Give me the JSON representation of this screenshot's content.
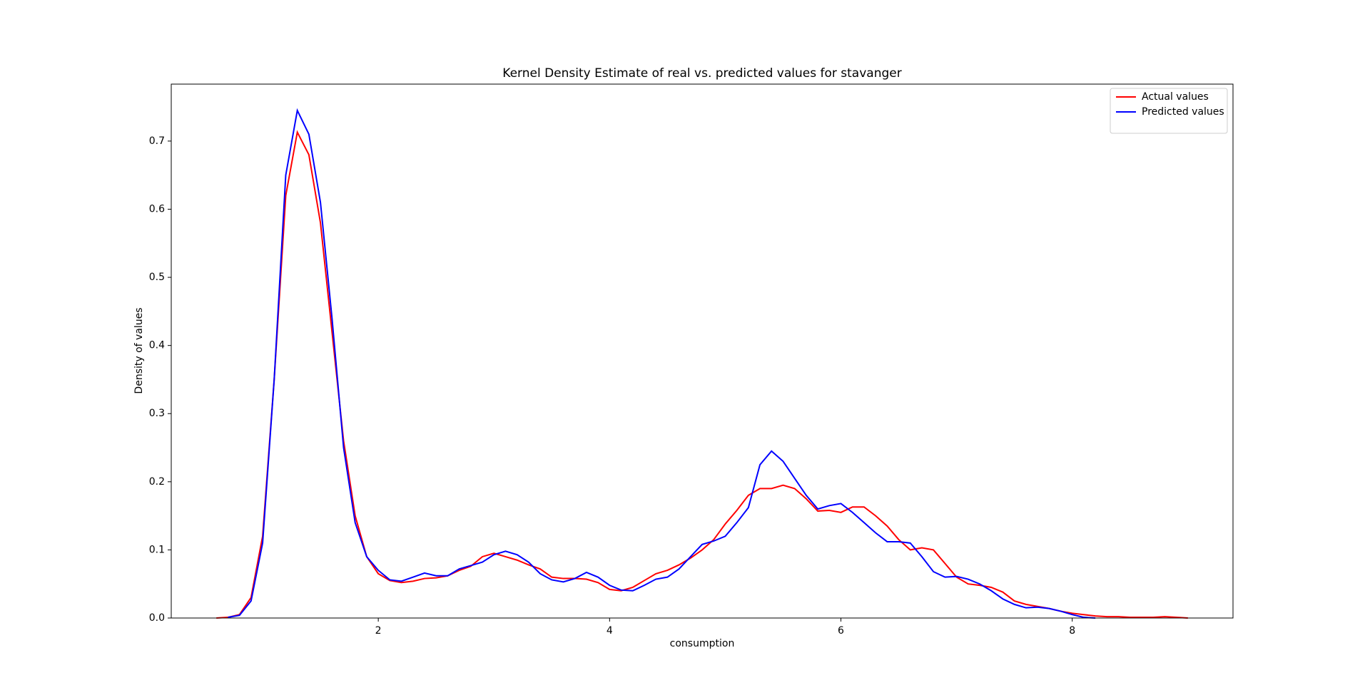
{
  "chart_data": {
    "type": "line",
    "title": "Kernel Density Estimate of real vs. predicted values for stavanger",
    "x_label": "consumption",
    "y_label": "Density of values",
    "x": [
      0.6,
      0.7,
      0.8,
      0.9,
      1.0,
      1.1,
      1.2,
      1.3,
      1.4,
      1.5,
      1.6,
      1.7,
      1.8,
      1.9,
      2.0,
      2.1,
      2.2,
      2.3,
      2.4,
      2.5,
      2.6,
      2.7,
      2.8,
      2.9,
      3.0,
      3.1,
      3.2,
      3.3,
      3.4,
      3.5,
      3.6,
      3.7,
      3.8,
      3.9,
      4.0,
      4.1,
      4.2,
      4.3,
      4.4,
      4.5,
      4.6,
      4.7,
      4.8,
      4.9,
      5.0,
      5.1,
      5.2,
      5.3,
      5.4,
      5.5,
      5.6,
      5.7,
      5.8,
      5.9,
      6.0,
      6.1,
      6.2,
      6.3,
      6.4,
      6.5,
      6.6,
      6.7,
      6.8,
      6.9,
      7.0,
      7.1,
      7.2,
      7.3,
      7.4,
      7.5,
      7.6,
      7.7,
      7.8,
      7.9,
      8.0,
      8.1,
      8.2,
      8.3,
      8.4,
      8.5,
      8.6,
      8.7,
      8.8,
      8.9,
      9.0
    ],
    "series": [
      {
        "name": "Actual values",
        "color": "#ff0000",
        "values": [
          0,
          0.001,
          0.005,
          0.03,
          0.12,
          0.35,
          0.62,
          0.713,
          0.68,
          0.58,
          0.42,
          0.26,
          0.15,
          0.09,
          0.065,
          0.055,
          0.052,
          0.054,
          0.058,
          0.059,
          0.062,
          0.07,
          0.076,
          0.09,
          0.095,
          0.09,
          0.085,
          0.078,
          0.072,
          0.06,
          0.058,
          0.058,
          0.057,
          0.052,
          0.042,
          0.04,
          0.045,
          0.055,
          0.065,
          0.07,
          0.078,
          0.088,
          0.1,
          0.115,
          0.138,
          0.158,
          0.18,
          0.19,
          0.19,
          0.195,
          0.19,
          0.175,
          0.157,
          0.158,
          0.155,
          0.163,
          0.163,
          0.15,
          0.135,
          0.115,
          0.1,
          0.103,
          0.1,
          0.08,
          0.06,
          0.05,
          0.048,
          0.045,
          0.038,
          0.025,
          0.02,
          0.017,
          0.014,
          0.01,
          0.007,
          0.005,
          0.003,
          0.002,
          0.002,
          0.001,
          0.001,
          0.001,
          0.002,
          0.001,
          0
        ]
      },
      {
        "name": "Predicted values",
        "color": "#0000ff",
        "values": [
          null,
          0.001,
          0.004,
          0.025,
          0.11,
          0.35,
          0.65,
          0.745,
          0.71,
          0.61,
          0.44,
          0.25,
          0.14,
          0.09,
          0.07,
          0.056,
          0.054,
          0.06,
          0.066,
          0.062,
          0.062,
          0.072,
          0.077,
          0.082,
          0.093,
          0.098,
          0.093,
          0.082,
          0.065,
          0.056,
          0.053,
          0.058,
          0.067,
          0.06,
          0.048,
          0.041,
          0.04,
          0.048,
          0.057,
          0.06,
          0.072,
          0.09,
          0.108,
          0.113,
          0.12,
          0.14,
          0.162,
          0.225,
          0.245,
          0.23,
          0.205,
          0.18,
          0.16,
          0.165,
          0.168,
          0.155,
          0.14,
          0.125,
          0.112,
          0.112,
          0.11,
          0.09,
          0.068,
          0.06,
          0.061,
          0.057,
          0.05,
          0.04,
          0.028,
          0.02,
          0.015,
          0.016,
          0.014,
          0.01,
          0.005,
          0.001,
          0,
          null,
          null,
          null,
          null,
          null,
          null,
          null,
          null
        ]
      }
    ],
    "xlim": [
      0.21,
      9.39
    ],
    "xticks": [
      2,
      4,
      6,
      8
    ],
    "ylim": [
      0,
      0.7836
    ],
    "yticks": [
      {
        "value": 0,
        "label": "0.0"
      },
      0.1,
      0.2,
      0.3,
      0.4,
      0.5,
      0.6,
      0.7
    ],
    "legend": "upper right"
  }
}
